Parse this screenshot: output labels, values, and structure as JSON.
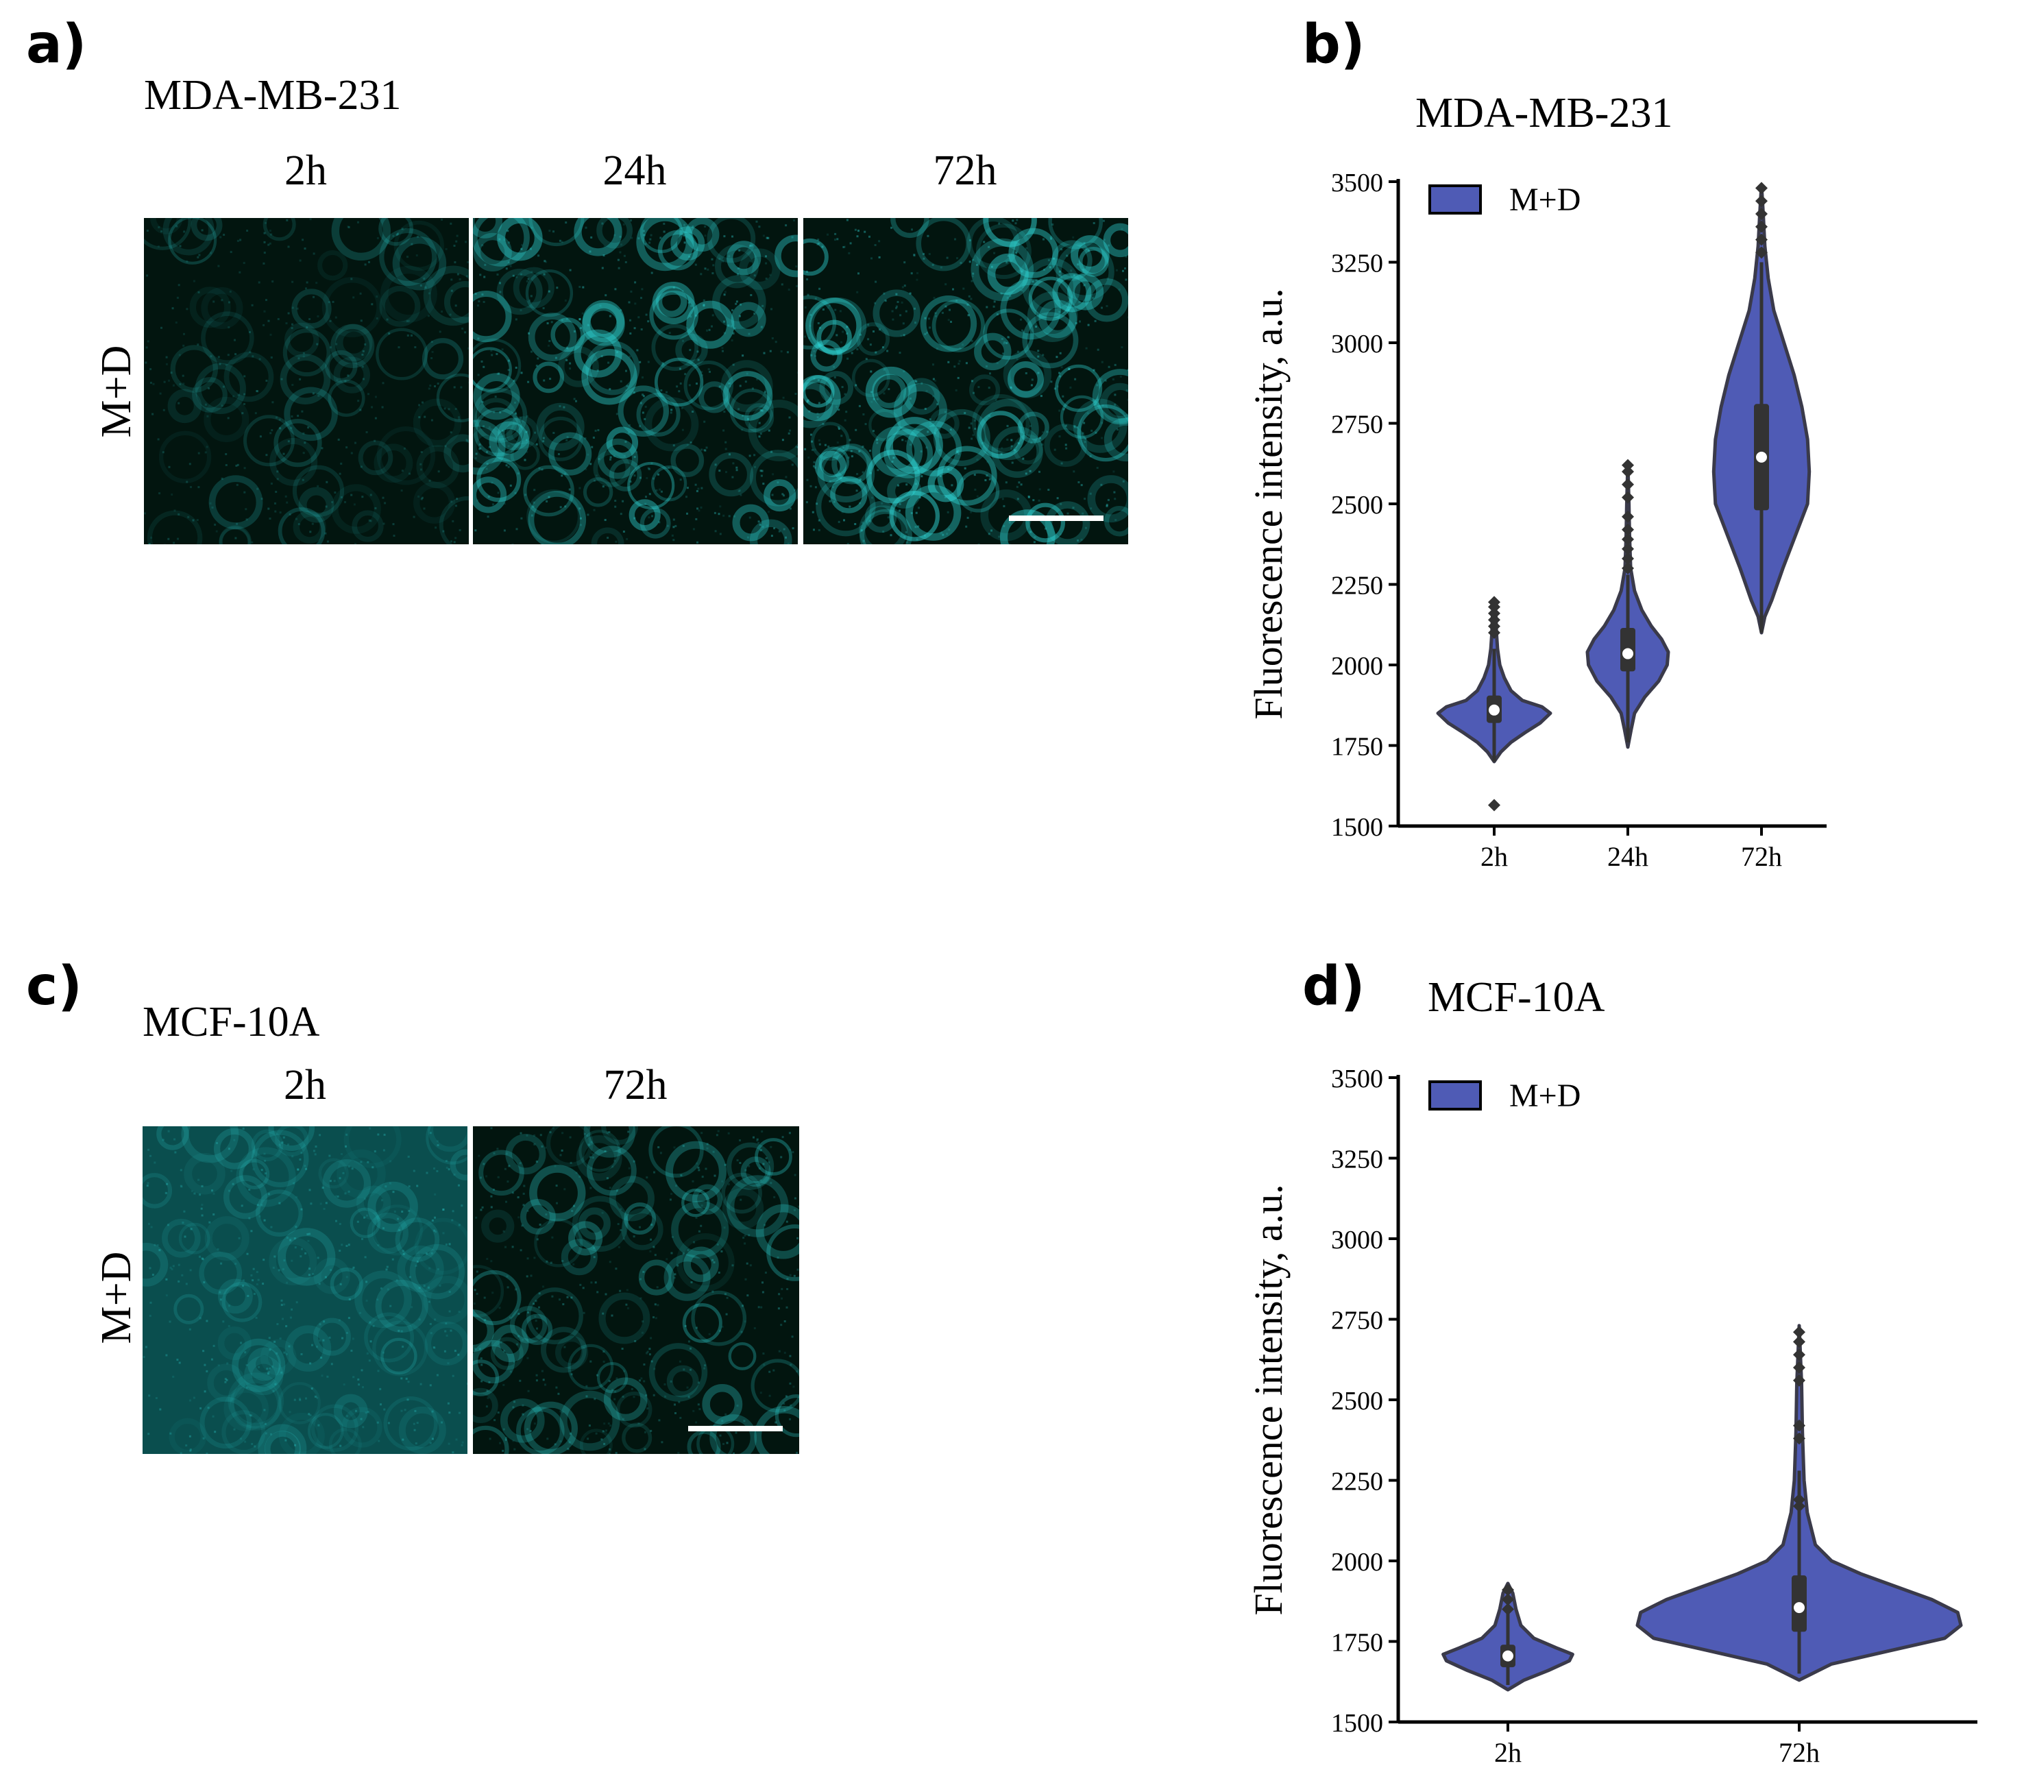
{
  "panel_a": {
    "letter": "a)",
    "cell_line": "MDA-MB-231",
    "row_label": "M+D",
    "columns": [
      "2h",
      "24h",
      "72h"
    ],
    "images": [
      {
        "description": "confocal image, dim cyan signal",
        "brightness": 0.35
      },
      {
        "description": "confocal image, bright cyan signal",
        "brightness": 0.75
      },
      {
        "description": "confocal image, brightest cyan signal",
        "brightness": 0.85
      }
    ],
    "scale_bar": true
  },
  "panel_c": {
    "letter": "c)",
    "cell_line": "MCF-10A",
    "row_label": "M+D",
    "columns": [
      "2h",
      "72h"
    ],
    "images": [
      {
        "description": "confocal image, diffuse cyan haze",
        "brightness": 0.55
      },
      {
        "description": "confocal image, moderate cyan signal",
        "brightness": 0.55
      }
    ],
    "scale_bar": true
  },
  "colors": {
    "violin_fill": "#4f5bb5",
    "violin_edge": "#3a3a4a",
    "box_fill": "#333333",
    "median_dot": "#ffffff",
    "image_bg": "#02150f",
    "cyan": "#2fd6d6"
  },
  "chart_data": [
    {
      "panel_letter": "b)",
      "type": "violin",
      "title": "MDA-MB-231",
      "ylabel": "Fluorescence intensity, a.u.",
      "xlabel": "",
      "ylim": [
        1500,
        3500
      ],
      "yticks": [
        1500,
        1750,
        2000,
        2250,
        2500,
        2750,
        3000,
        3250,
        3500
      ],
      "categories": [
        "2h",
        "24h",
        "72h"
      ],
      "legend": {
        "label": "M+D",
        "position": "top-left"
      },
      "series": [
        {
          "name": "M+D",
          "violins": [
            {
              "category": "2h",
              "median": 1860,
              "q1": 1820,
              "q3": 1905,
              "whisker_low": 1700,
              "whisker_high": 2050,
              "profile": [
                [
                  1700,
                  0.0
                ],
                [
                  1730,
                  0.12
                ],
                [
                  1760,
                  0.3
                ],
                [
                  1790,
                  0.55
                ],
                [
                  1820,
                  0.82
                ],
                [
                  1850,
                  1.0
                ],
                [
                  1870,
                  0.85
                ],
                [
                  1890,
                  0.5
                ],
                [
                  1920,
                  0.3
                ],
                [
                  1960,
                  0.18
                ],
                [
                  2000,
                  0.1
                ],
                [
                  2050,
                  0.06
                ],
                [
                  2100,
                  0.04
                ],
                [
                  2150,
                  0.03
                ],
                [
                  2200,
                  0.0
                ]
              ],
              "outliers": [
                1565,
                2100,
                2120,
                2140,
                2160,
                2180,
                2195
              ]
            },
            {
              "category": "24h",
              "median": 2035,
              "q1": 1980,
              "q3": 2115,
              "whisker_low": 1760,
              "whisker_high": 2280,
              "profile": [
                [
                  1745,
                  0.0
                ],
                [
                  1800,
                  0.06
                ],
                [
                  1850,
                  0.12
                ],
                [
                  1900,
                  0.3
                ],
                [
                  1950,
                  0.55
                ],
                [
                  2000,
                  0.7
                ],
                [
                  2040,
                  0.72
                ],
                [
                  2080,
                  0.6
                ],
                [
                  2120,
                  0.42
                ],
                [
                  2170,
                  0.25
                ],
                [
                  2230,
                  0.12
                ],
                [
                  2300,
                  0.05
                ],
                [
                  2400,
                  0.03
                ],
                [
                  2500,
                  0.02
                ],
                [
                  2630,
                  0.0
                ]
              ],
              "outliers": [
                2300,
                2330,
                2360,
                2390,
                2420,
                2460,
                2520,
                2560,
                2600,
                2620
              ]
            },
            {
              "category": "72h",
              "median": 2645,
              "q1": 2480,
              "q3": 2810,
              "whisker_low": 2100,
              "whisker_high": 3250,
              "profile": [
                [
                  2100,
                  0.0
                ],
                [
                  2150,
                  0.06
                ],
                [
                  2200,
                  0.18
                ],
                [
                  2300,
                  0.38
                ],
                [
                  2400,
                  0.6
                ],
                [
                  2500,
                  0.82
                ],
                [
                  2600,
                  0.85
                ],
                [
                  2700,
                  0.82
                ],
                [
                  2800,
                  0.72
                ],
                [
                  2900,
                  0.58
                ],
                [
                  3000,
                  0.4
                ],
                [
                  3100,
                  0.22
                ],
                [
                  3200,
                  0.12
                ],
                [
                  3300,
                  0.06
                ],
                [
                  3400,
                  0.03
                ],
                [
                  3490,
                  0.0
                ]
              ],
              "outliers": [
                3280,
                3320,
                3360,
                3400,
                3440,
                3480
              ]
            }
          ]
        }
      ]
    },
    {
      "panel_letter": "d)",
      "type": "violin",
      "title": "MCF-10A",
      "ylabel": "Fluorescence intensity, a.u.",
      "xlabel": "",
      "ylim": [
        1500,
        3500
      ],
      "yticks": [
        1500,
        1750,
        2000,
        2250,
        2500,
        2750,
        3000,
        3250,
        3500
      ],
      "categories": [
        "2h",
        "72h"
      ],
      "legend": {
        "label": "M+D",
        "position": "top-left"
      },
      "series": [
        {
          "name": "M+D",
          "violins": [
            {
              "category": "2h",
              "median": 1705,
              "q1": 1670,
              "q3": 1740,
              "whisker_low": 1615,
              "whisker_high": 1840,
              "profile": [
                [
                  1600,
                  0.0
                ],
                [
                  1630,
                  0.1
                ],
                [
                  1660,
                  0.25
                ],
                [
                  1690,
                  0.38
                ],
                [
                  1710,
                  0.4
                ],
                [
                  1730,
                  0.3
                ],
                [
                  1760,
                  0.16
                ],
                [
                  1800,
                  0.08
                ],
                [
                  1850,
                  0.05
                ],
                [
                  1900,
                  0.03
                ],
                [
                  1930,
                  0.0
                ]
              ],
              "outliers": [
                1850,
                1880,
                1910
              ]
            },
            {
              "category": "72h",
              "median": 1855,
              "q1": 1780,
              "q3": 1955,
              "whisker_low": 1650,
              "whisker_high": 2280,
              "profile": [
                [
                  1630,
                  0.0
                ],
                [
                  1680,
                  0.2
                ],
                [
                  1720,
                  0.55
                ],
                [
                  1760,
                  0.9
                ],
                [
                  1800,
                  1.0
                ],
                [
                  1840,
                  0.98
                ],
                [
                  1880,
                  0.82
                ],
                [
                  1920,
                  0.6
                ],
                [
                  1960,
                  0.38
                ],
                [
                  2000,
                  0.2
                ],
                [
                  2050,
                  0.1
                ],
                [
                  2150,
                  0.05
                ],
                [
                  2250,
                  0.03
                ],
                [
                  2400,
                  0.02
                ],
                [
                  2550,
                  0.015
                ],
                [
                  2730,
                  0.0
                ]
              ],
              "outliers": [
                2170,
                2190,
                2380,
                2420,
                2560,
                2600,
                2640,
                2680,
                2710
              ]
            }
          ]
        }
      ]
    }
  ]
}
